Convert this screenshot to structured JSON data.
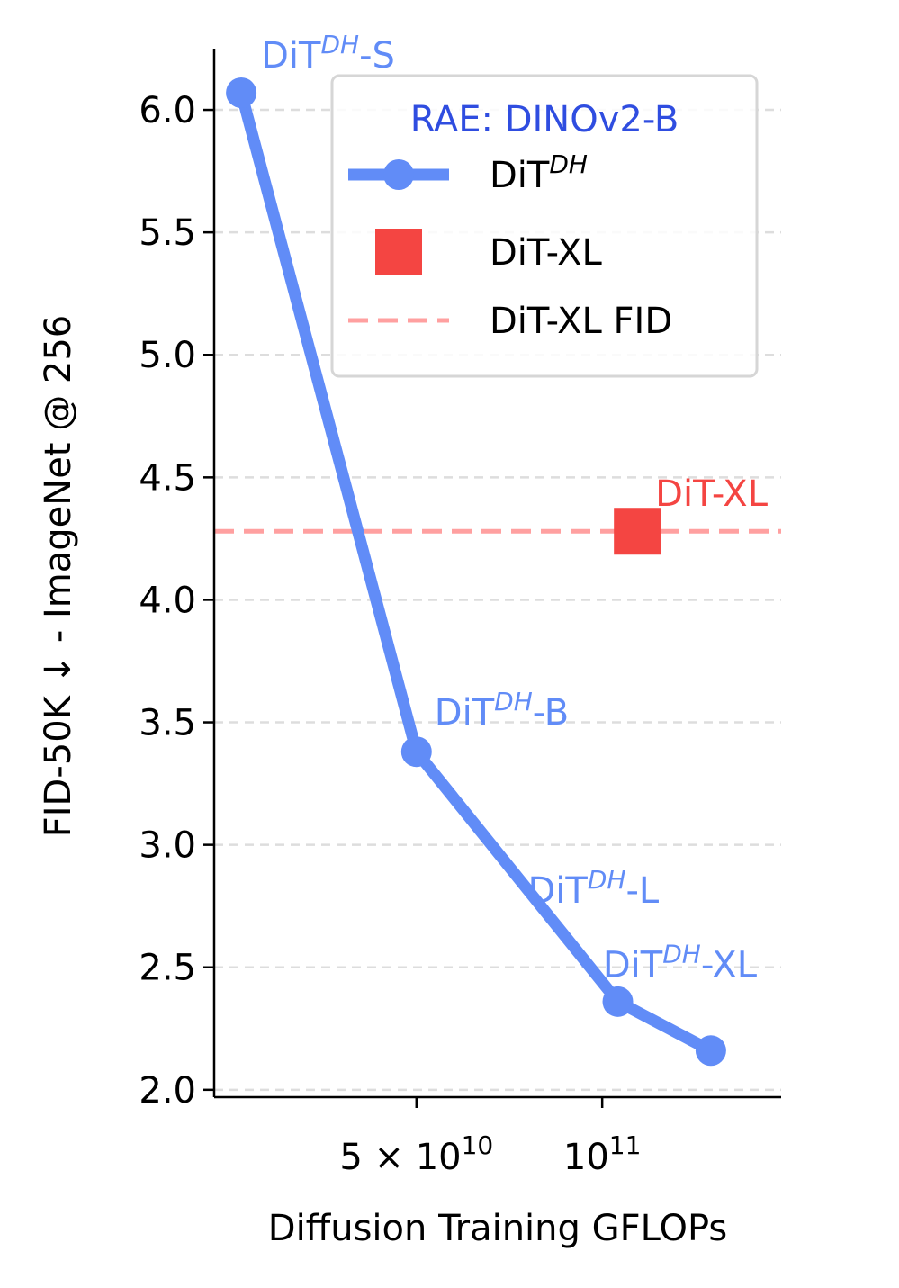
{
  "chart_data": {
    "type": "line",
    "xlabel": "Diffusion Training GFLOPs",
    "ylabel": "FID-50K ↓ - ImageNet @ 256",
    "xscale": "log",
    "ylim": [
      1.97,
      6.25
    ],
    "xlim": [
      23500000000.0,
      195000000000.0
    ],
    "grid": "horizontal-dashed",
    "x_ticks": [
      {
        "value": 50000000000.0,
        "base": "5 × 10",
        "exp": "10"
      },
      {
        "value": 100000000000.0,
        "base": "10",
        "exp": "11"
      }
    ],
    "y_ticks": [
      {
        "value": 2.0,
        "label": "2.0"
      },
      {
        "value": 2.5,
        "label": "2.5"
      },
      {
        "value": 3.0,
        "label": "3.0"
      },
      {
        "value": 3.5,
        "label": "3.5"
      },
      {
        "value": 4.0,
        "label": "4.0"
      },
      {
        "value": 4.5,
        "label": "4.5"
      },
      {
        "value": 5.0,
        "label": "5.0"
      },
      {
        "value": 5.5,
        "label": "5.5"
      },
      {
        "value": 6.0,
        "label": "6.0"
      }
    ],
    "legend": {
      "placement": "top-right",
      "title": "RAE: DINOv2-B",
      "title_color": "#2f4de0",
      "entries": [
        {
          "base": "DiT",
          "sup": "DH",
          "label_suffix": "",
          "marker": "line-circle",
          "color": "#618cf7"
        },
        {
          "base": "DiT-XL",
          "sup": "",
          "label_suffix": "",
          "marker": "square",
          "color": "#f44542"
        },
        {
          "base": "DiT-XL FID",
          "sup": "",
          "label_suffix": "",
          "marker": "dashed-line",
          "color": "#ffa0a0"
        }
      ]
    },
    "series": [
      {
        "name": "DiT^DH",
        "color": "#618cf7",
        "points": [
          {
            "x": 26000000000.0,
            "y": 6.07,
            "base": "DiT",
            "sup": "DH",
            "suffix": "-S"
          },
          {
            "x": 50000000000.0,
            "y": 3.38,
            "base": "DiT",
            "sup": "DH",
            "suffix": "-B"
          },
          {
            "x": 106000000000.0,
            "y": 2.36,
            "base": "DiT",
            "sup": "DH",
            "suffix": "-L"
          },
          {
            "x": 150000000000.0,
            "y": 2.16,
            "base": "DiT",
            "sup": "DH",
            "suffix": "-XL"
          }
        ]
      },
      {
        "name": "DiT-XL",
        "color": "#f44542",
        "points": [
          {
            "x": 114000000000.0,
            "y": 4.28,
            "label": "DiT-XL"
          }
        ]
      }
    ],
    "reference_line": {
      "name": "DiT-XL FID",
      "y": 4.28,
      "color": "#ffa0a0"
    }
  }
}
